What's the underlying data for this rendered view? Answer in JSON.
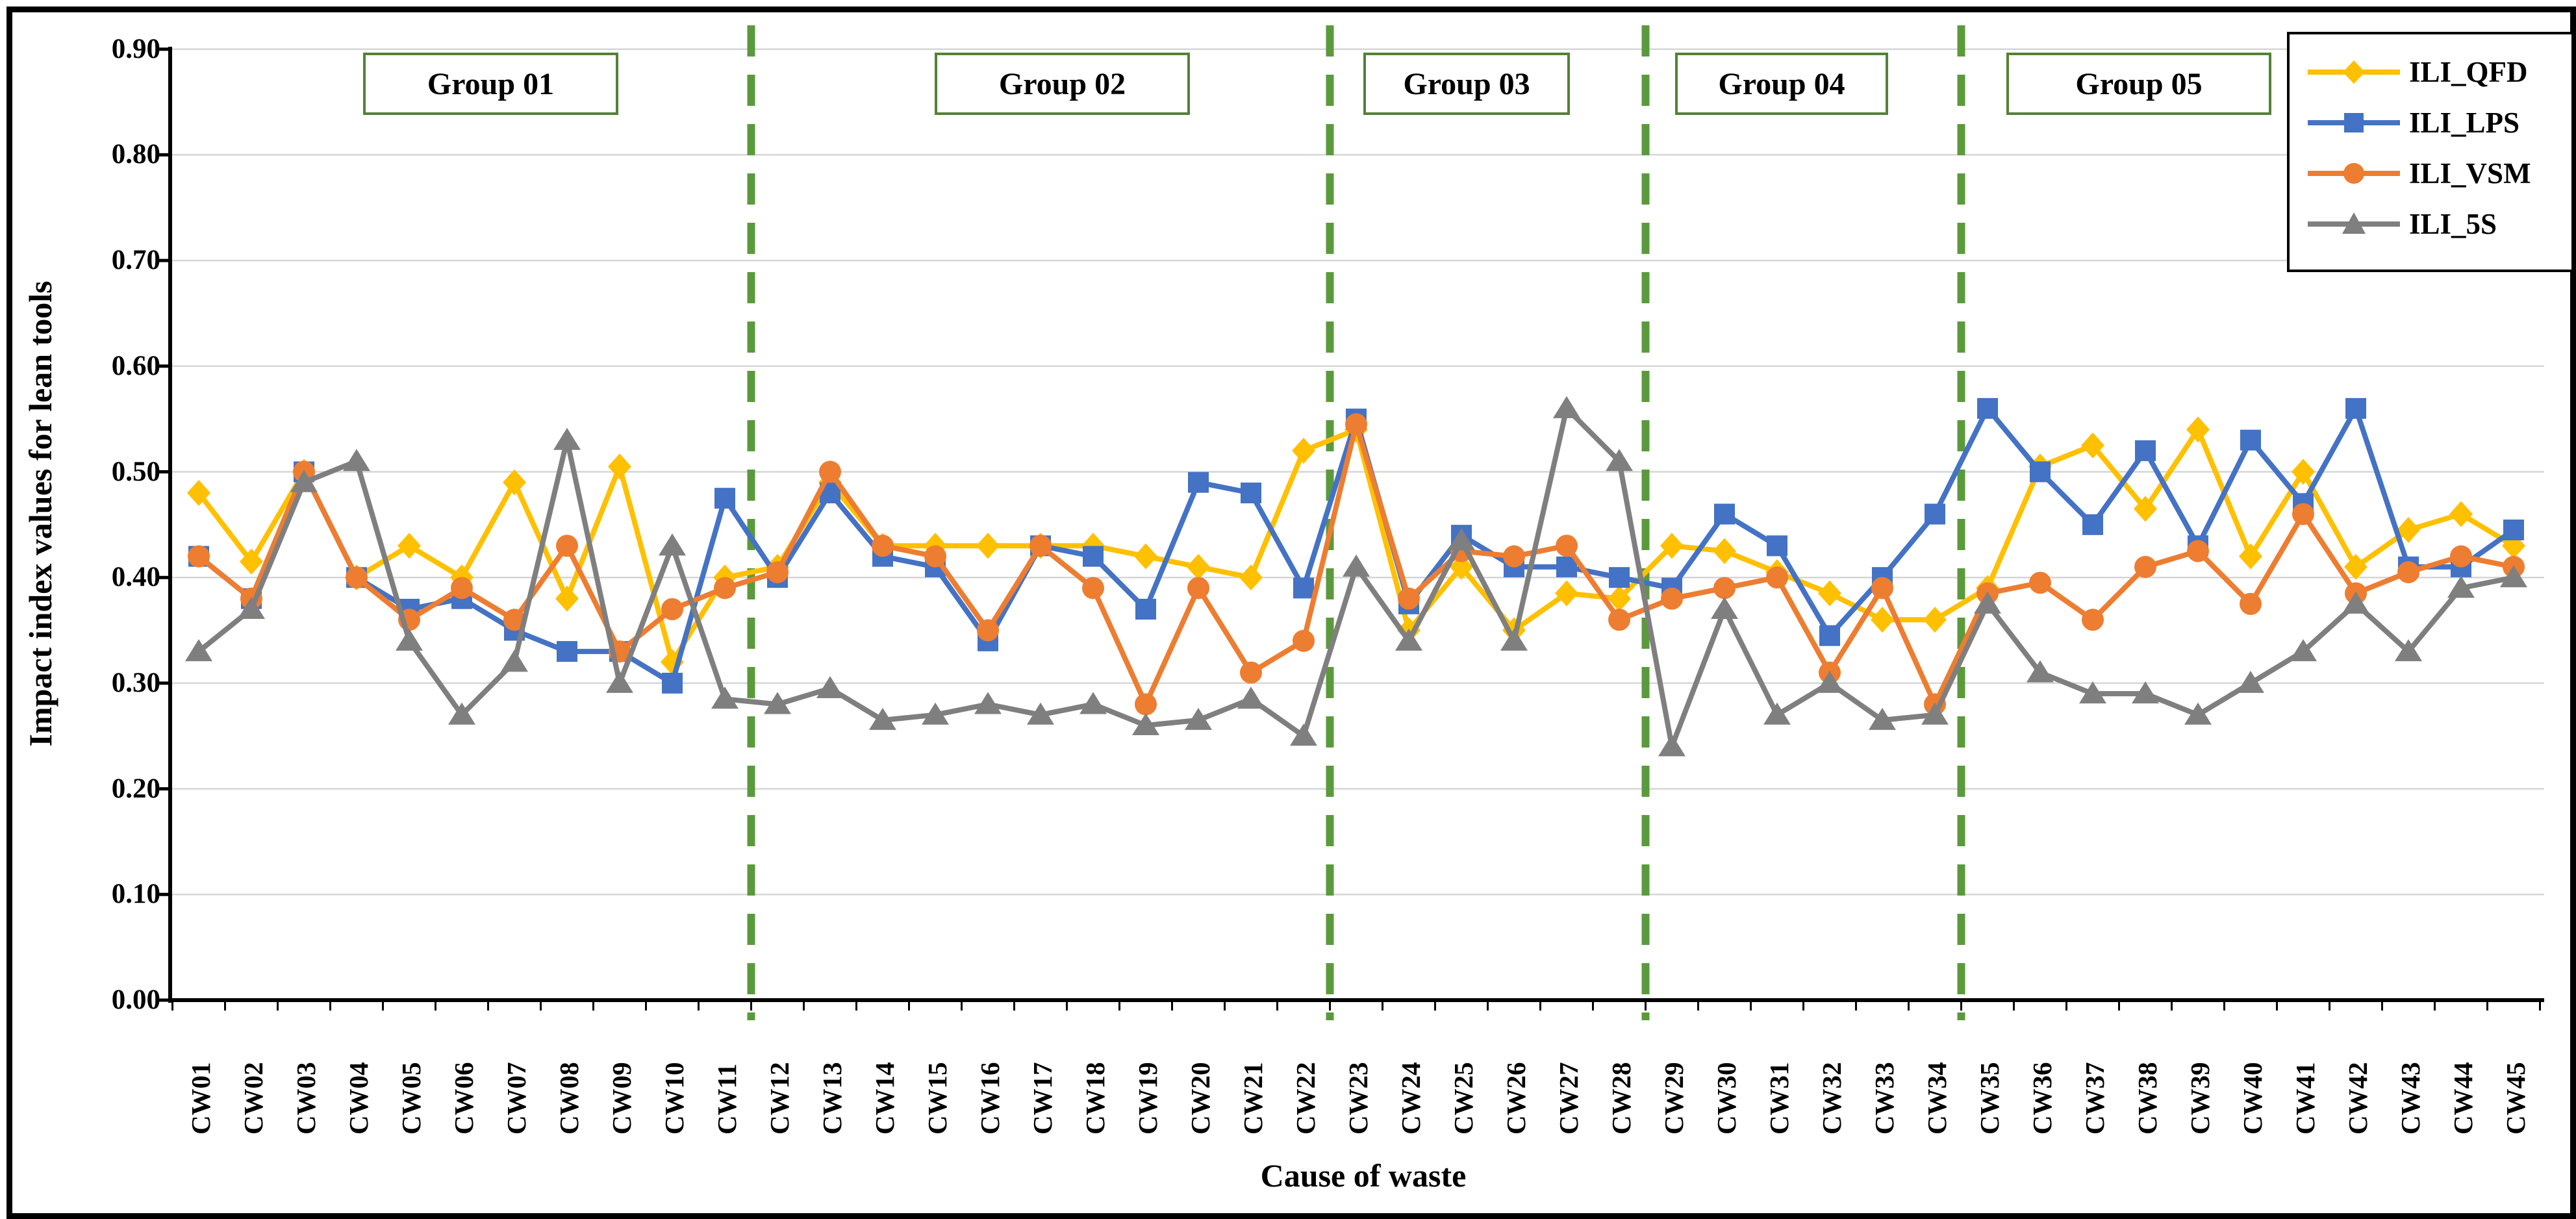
{
  "chart_data": {
    "type": "line",
    "title": "",
    "xlabel": "Cause of waste",
    "ylabel": "Impact index values for lean tools",
    "ylim": [
      0.0,
      0.9
    ],
    "y_ticks": [
      "0.00",
      "0.10",
      "0.20",
      "0.30",
      "0.40",
      "0.50",
      "0.60",
      "0.70",
      "0.80",
      "0.90"
    ],
    "grid": true,
    "legend_position": "top-right",
    "categories": [
      "CW01",
      "CW02",
      "CW03",
      "CW04",
      "CW05",
      "CW06",
      "CW07",
      "CW08",
      "CW09",
      "CW10",
      "CW11",
      "CW12",
      "CW13",
      "CW14",
      "CW15",
      "CW16",
      "CW17",
      "CW18",
      "CW19",
      "CW20",
      "CW21",
      "CW22",
      "CW23",
      "CW24",
      "CW25",
      "CW26",
      "CW27",
      "CW28",
      "CW29",
      "CW30",
      "CW31",
      "CW32",
      "CW33",
      "CW34",
      "CW35",
      "CW36",
      "CW37",
      "CW38",
      "CW39",
      "CW40",
      "CW41",
      "CW42",
      "CW43",
      "CW44",
      "CW45"
    ],
    "groups": [
      {
        "label": "Group 01",
        "from": "CW01",
        "to": "CW11"
      },
      {
        "label": "Group 02",
        "from": "CW12",
        "to": "CW22"
      },
      {
        "label": "Group 03",
        "from": "CW23",
        "to": "CW28"
      },
      {
        "label": "Group 04",
        "from": "CW29",
        "to": "CW34"
      },
      {
        "label": "Group 05",
        "from": "CW35",
        "to": "CW45"
      }
    ],
    "group_separator_color": "#5B9A3C",
    "series": [
      {
        "name": "ILI_QFD",
        "color": "#FFC000",
        "marker": "diamond",
        "values": [
          0.48,
          0.415,
          0.5,
          0.4,
          0.43,
          0.4,
          0.49,
          0.38,
          0.505,
          0.32,
          0.4,
          0.41,
          0.49,
          0.43,
          0.43,
          0.43,
          0.43,
          0.43,
          0.42,
          0.41,
          0.4,
          0.52,
          0.54,
          0.35,
          0.41,
          0.35,
          0.385,
          0.38,
          0.43,
          0.425,
          0.405,
          0.385,
          0.36,
          0.36,
          0.39,
          0.505,
          0.525,
          0.465,
          0.54,
          0.42,
          0.5,
          0.41,
          0.445,
          0.46,
          0.43
        ]
      },
      {
        "name": "ILI_LPS",
        "color": "#4472C4",
        "marker": "square",
        "values": [
          0.42,
          0.38,
          0.5,
          0.4,
          0.37,
          0.38,
          0.35,
          0.33,
          0.33,
          0.3,
          0.475,
          0.4,
          0.48,
          0.42,
          0.41,
          0.34,
          0.43,
          0.42,
          0.37,
          0.49,
          0.48,
          0.39,
          0.55,
          0.375,
          0.44,
          0.41,
          0.41,
          0.4,
          0.39,
          0.46,
          0.43,
          0.345,
          0.4,
          0.46,
          0.56,
          0.5,
          0.45,
          0.52,
          0.43,
          0.53,
          0.47,
          0.56,
          0.41,
          0.41,
          0.445
        ]
      },
      {
        "name": "ILI_VSM",
        "color": "#ED7D31",
        "marker": "circle",
        "values": [
          0.42,
          0.38,
          0.5,
          0.4,
          0.36,
          0.39,
          0.36,
          0.43,
          0.33,
          0.37,
          0.39,
          0.405,
          0.5,
          0.43,
          0.42,
          0.35,
          0.43,
          0.39,
          0.28,
          0.39,
          0.31,
          0.34,
          0.545,
          0.38,
          0.425,
          0.42,
          0.43,
          0.36,
          0.38,
          0.39,
          0.4,
          0.31,
          0.39,
          0.28,
          0.385,
          0.395,
          0.36,
          0.41,
          0.425,
          0.375,
          0.46,
          0.385,
          0.405,
          0.42,
          0.41
        ]
      },
      {
        "name": "ILI_5S",
        "color": "#7F7F7F",
        "marker": "triangle",
        "values": [
          0.33,
          0.37,
          0.49,
          0.51,
          0.34,
          0.27,
          0.32,
          0.53,
          0.3,
          0.43,
          0.285,
          0.28,
          0.295,
          0.265,
          0.27,
          0.28,
          0.27,
          0.28,
          0.26,
          0.265,
          0.285,
          0.25,
          0.41,
          0.34,
          0.435,
          0.34,
          0.56,
          0.51,
          0.24,
          0.37,
          0.27,
          0.3,
          0.265,
          0.27,
          0.375,
          0.31,
          0.29,
          0.29,
          0.27,
          0.3,
          0.33,
          0.375,
          0.33,
          0.39,
          0.4
        ]
      }
    ]
  }
}
